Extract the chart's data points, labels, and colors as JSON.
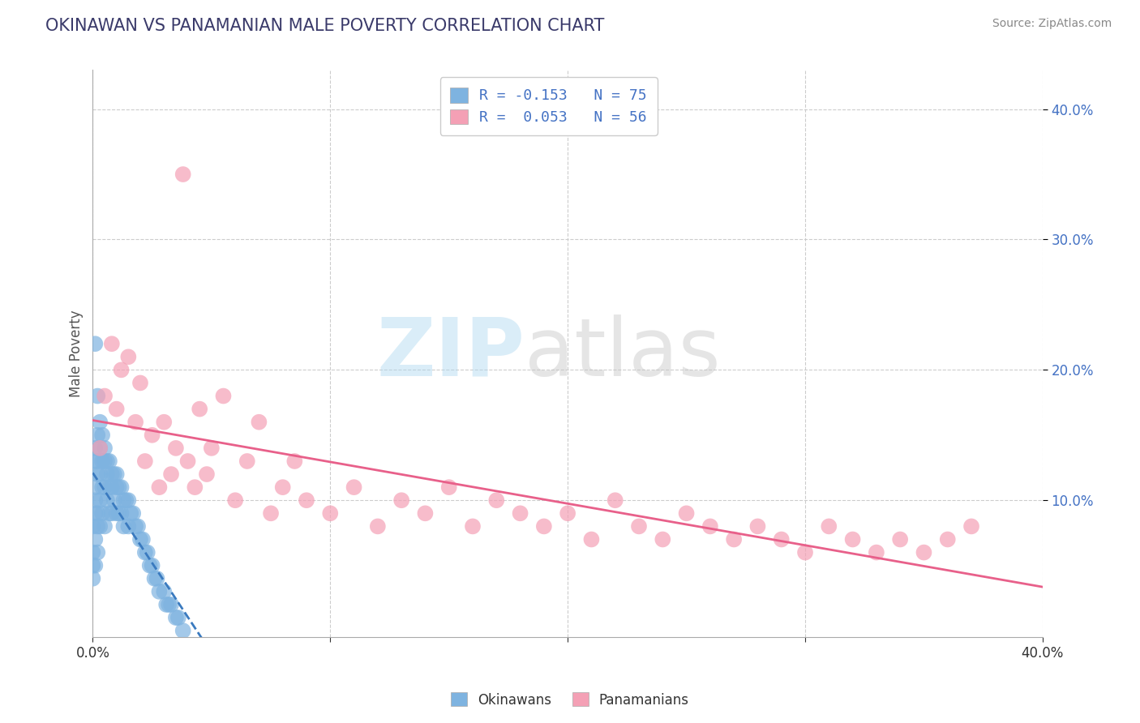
{
  "title": "OKINAWAN VS PANAMANIAN MALE POVERTY CORRELATION CHART",
  "source": "Source: ZipAtlas.com",
  "ylabel": "Male Poverty",
  "xmin": 0.0,
  "xmax": 0.4,
  "ymin": -0.005,
  "ymax": 0.43,
  "okinawan_color": "#7eb3e0",
  "panamanian_color": "#f4a0b5",
  "trend_okinawan_color": "#3a7abf",
  "trend_panamanian_color": "#e8608a",
  "legend_label_okinawans": "Okinawans",
  "legend_label_panamanians": "Panamanians",
  "ok_x": [
    0.0,
    0.0,
    0.0,
    0.0,
    0.001,
    0.001,
    0.001,
    0.001,
    0.001,
    0.001,
    0.001,
    0.001,
    0.002,
    0.002,
    0.002,
    0.002,
    0.002,
    0.002,
    0.002,
    0.003,
    0.003,
    0.003,
    0.003,
    0.003,
    0.004,
    0.004,
    0.004,
    0.004,
    0.005,
    0.005,
    0.005,
    0.005,
    0.006,
    0.006,
    0.006,
    0.007,
    0.007,
    0.007,
    0.008,
    0.008,
    0.008,
    0.009,
    0.009,
    0.01,
    0.01,
    0.01,
    0.011,
    0.011,
    0.012,
    0.012,
    0.013,
    0.013,
    0.014,
    0.015,
    0.015,
    0.016,
    0.017,
    0.018,
    0.019,
    0.02,
    0.021,
    0.022,
    0.023,
    0.024,
    0.025,
    0.026,
    0.027,
    0.028,
    0.03,
    0.031,
    0.032,
    0.033,
    0.035,
    0.036,
    0.038
  ],
  "ok_y": [
    0.08,
    0.06,
    0.05,
    0.04,
    0.22,
    0.14,
    0.13,
    0.11,
    0.1,
    0.09,
    0.07,
    0.05,
    0.18,
    0.15,
    0.13,
    0.12,
    0.09,
    0.08,
    0.06,
    0.16,
    0.14,
    0.12,
    0.1,
    0.08,
    0.15,
    0.13,
    0.11,
    0.09,
    0.14,
    0.13,
    0.11,
    0.08,
    0.13,
    0.12,
    0.1,
    0.13,
    0.11,
    0.09,
    0.12,
    0.11,
    0.09,
    0.12,
    0.1,
    0.12,
    0.11,
    0.09,
    0.11,
    0.09,
    0.11,
    0.09,
    0.1,
    0.08,
    0.1,
    0.1,
    0.08,
    0.09,
    0.09,
    0.08,
    0.08,
    0.07,
    0.07,
    0.06,
    0.06,
    0.05,
    0.05,
    0.04,
    0.04,
    0.03,
    0.03,
    0.02,
    0.02,
    0.02,
    0.01,
    0.01,
    0.0
  ],
  "pan_x": [
    0.003,
    0.005,
    0.008,
    0.01,
    0.012,
    0.015,
    0.018,
    0.02,
    0.022,
    0.025,
    0.028,
    0.03,
    0.033,
    0.035,
    0.038,
    0.04,
    0.043,
    0.045,
    0.048,
    0.05,
    0.055,
    0.06,
    0.065,
    0.07,
    0.075,
    0.08,
    0.085,
    0.09,
    0.1,
    0.11,
    0.12,
    0.13,
    0.14,
    0.15,
    0.16,
    0.17,
    0.18,
    0.19,
    0.2,
    0.21,
    0.22,
    0.23,
    0.24,
    0.25,
    0.26,
    0.27,
    0.28,
    0.29,
    0.3,
    0.31,
    0.32,
    0.33,
    0.34,
    0.35,
    0.36,
    0.37
  ],
  "pan_y": [
    0.14,
    0.18,
    0.22,
    0.17,
    0.2,
    0.21,
    0.16,
    0.19,
    0.13,
    0.15,
    0.11,
    0.16,
    0.12,
    0.14,
    0.35,
    0.13,
    0.11,
    0.17,
    0.12,
    0.14,
    0.18,
    0.1,
    0.13,
    0.16,
    0.09,
    0.11,
    0.13,
    0.1,
    0.09,
    0.11,
    0.08,
    0.1,
    0.09,
    0.11,
    0.08,
    0.1,
    0.09,
    0.08,
    0.09,
    0.07,
    0.1,
    0.08,
    0.07,
    0.09,
    0.08,
    0.07,
    0.08,
    0.07,
    0.06,
    0.08,
    0.07,
    0.06,
    0.07,
    0.06,
    0.07,
    0.08
  ]
}
